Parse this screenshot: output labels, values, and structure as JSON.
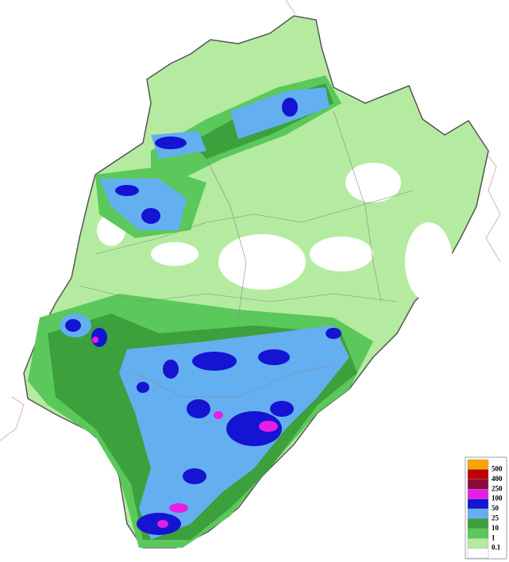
{
  "legend": {
    "labels": [
      500,
      400,
      250,
      100,
      50,
      25,
      10,
      1,
      0.1
    ],
    "colors": [
      "#f7a400",
      "#c00000",
      "#8c0a3c",
      "#e61ee6",
      "#1414d2",
      "#64aff0",
      "#3ca03c",
      "#5ac85a",
      "#b4eba0",
      "#ffffff"
    ]
  }
}
